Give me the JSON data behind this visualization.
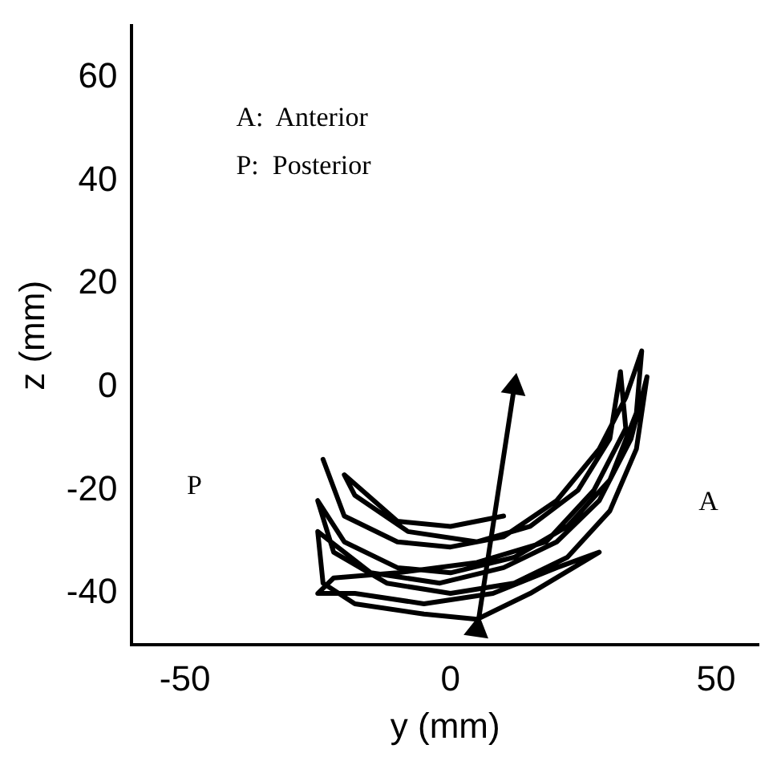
{
  "chart_data": {
    "type": "line",
    "xlabel": "y (mm)",
    "ylabel": "z (mm)",
    "xlim": [
      -60,
      58
    ],
    "ylim": [
      -50,
      70
    ],
    "xticks": [
      -50,
      0,
      50
    ],
    "yticks": [
      -40,
      -20,
      0,
      20,
      40,
      60
    ],
    "grid": false,
    "legend": false,
    "line_style": "solid",
    "annotations": [
      "A:  Anterior",
      "P:  Posterior",
      "P",
      "A"
    ],
    "series": [
      {
        "color": "#000000",
        "marker": "none",
        "x": [
          -24,
          -20,
          -10,
          0,
          10,
          20,
          28,
          33,
          36,
          35,
          30,
          22,
          12,
          0,
          -10,
          -20,
          -25,
          -22,
          -12,
          0,
          12,
          22,
          30,
          35,
          37,
          34,
          28,
          20,
          10,
          -2,
          -15,
          -25,
          -24,
          -18,
          -5,
          5,
          15,
          28,
          20,
          8,
          -5,
          -18,
          -25,
          -22,
          -10,
          5,
          18,
          27,
          33,
          32,
          30,
          24,
          15,
          5,
          -8,
          -18,
          -20,
          -10,
          0,
          10
        ],
        "values": [
          -14,
          -25,
          -30,
          -31,
          -29,
          -22,
          -12,
          -2,
          7,
          -5,
          -18,
          -27,
          -33,
          -36,
          -35,
          -30,
          -22,
          -32,
          -38,
          -40,
          -38,
          -33,
          -24,
          -12,
          2,
          -10,
          -22,
          -30,
          -35,
          -38,
          -36,
          -28,
          -38,
          -42,
          -44,
          -45,
          -40,
          -32,
          -35,
          -40,
          -42,
          -40,
          -40,
          -37,
          -36,
          -34,
          -30,
          -20,
          -8,
          3,
          -10,
          -20,
          -27,
          -30,
          -28,
          -21,
          -17,
          -26,
          -27,
          -25
        ]
      },
      {
        "color": "#000000",
        "marker": "triangle",
        "x": [
          5,
          12
        ],
        "values": [
          -47,
          0
        ]
      }
    ]
  }
}
